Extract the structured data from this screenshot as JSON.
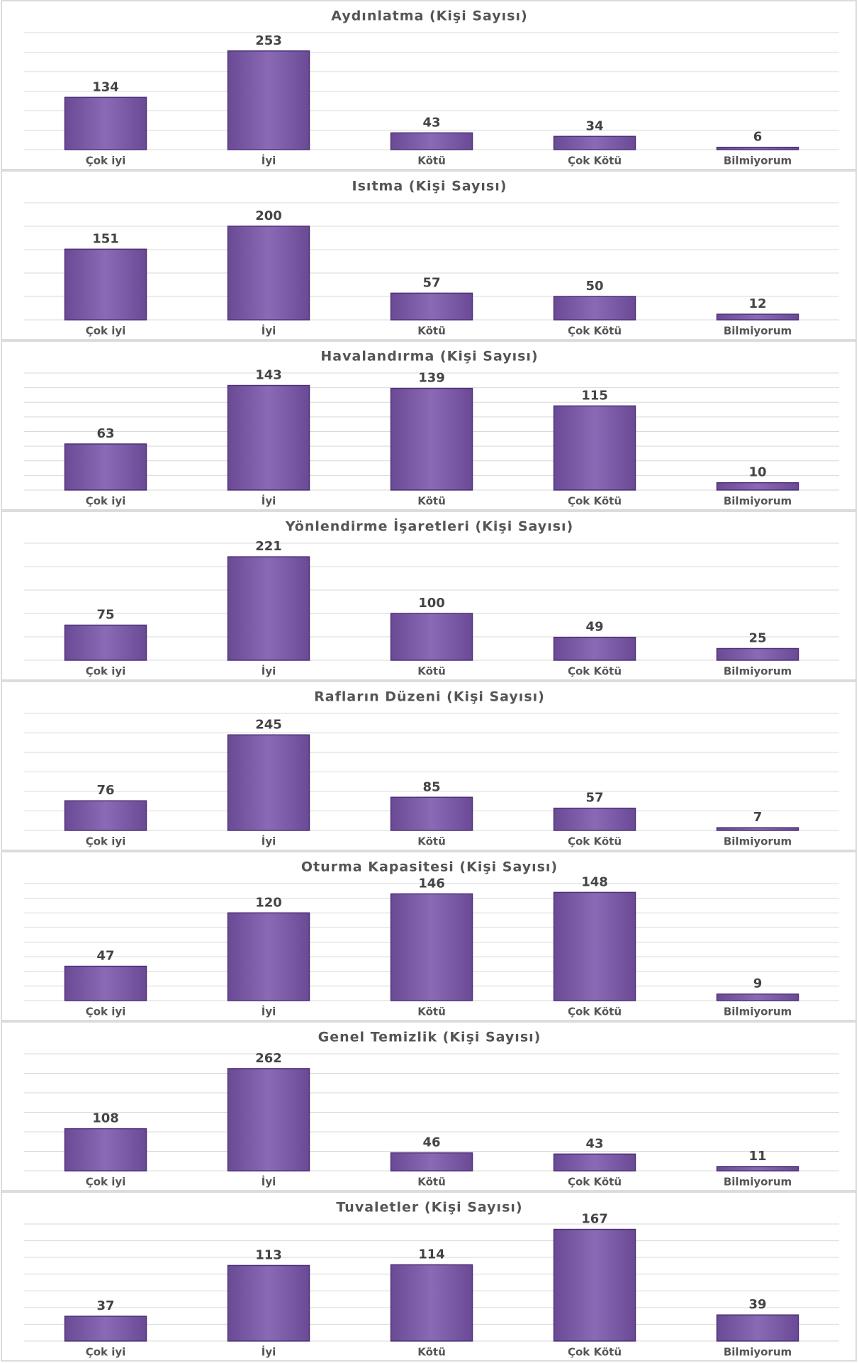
{
  "chart_data": [
    {
      "type": "bar",
      "title": "Aydınlatma (Kişi Sayısı)",
      "categories": [
        "Çok iyi",
        "İyi",
        "Kötü",
        "Çok Kötü",
        "Bilmiyorum"
      ],
      "values": [
        134,
        253,
        43,
        34,
        6
      ],
      "color": "#7d5ba6",
      "ylim": [
        0,
        300
      ],
      "yticks": [
        0,
        50,
        100,
        150,
        200,
        250,
        300
      ],
      "grid": true
    },
    {
      "type": "bar",
      "title": "Isıtma (Kişi Sayısı)",
      "categories": [
        "Çok iyi",
        "İyi",
        "Kötü",
        "Çok Kötü",
        "Bilmiyorum"
      ],
      "values": [
        151,
        200,
        57,
        50,
        12
      ],
      "color": "#7d5ba6",
      "ylim": [
        0,
        250
      ],
      "yticks": [
        0,
        50,
        100,
        150,
        200,
        250
      ],
      "grid": true
    },
    {
      "type": "bar",
      "title": "Havalandırma (Kişi Sayısı)",
      "categories": [
        "Çok iyi",
        "İyi",
        "Kötü",
        "Çok Kötü",
        "Bilmiyorum"
      ],
      "values": [
        63,
        143,
        139,
        115,
        10
      ],
      "color": "#7d5ba6",
      "ylim": [
        0,
        160
      ],
      "yticks": [
        0,
        20,
        40,
        60,
        80,
        100,
        120,
        140,
        160
      ],
      "grid": true
    },
    {
      "type": "bar",
      "title": "Yönlendirme İşaretleri (Kişi Sayısı)",
      "categories": [
        "Çok iyi",
        "İyi",
        "Kötü",
        "Çok Kötü",
        "Bilmiyorum"
      ],
      "values": [
        75,
        221,
        100,
        49,
        25
      ],
      "color": "#7d5ba6",
      "ylim": [
        0,
        250
      ],
      "yticks": [
        0,
        50,
        100,
        150,
        200,
        250
      ],
      "grid": true
    },
    {
      "type": "bar",
      "title": "Rafların Düzeni (Kişi Sayısı)",
      "categories": [
        "Çok iyi",
        "İyi",
        "Kötü",
        "Çok Kötü",
        "Bilmiyorum"
      ],
      "values": [
        76,
        245,
        85,
        57,
        7
      ],
      "color": "#7d5ba6",
      "ylim": [
        0,
        300
      ],
      "yticks": [
        0,
        50,
        100,
        150,
        200,
        250,
        300
      ],
      "grid": true
    },
    {
      "type": "bar",
      "title": "Oturma Kapasitesi (Kişi Sayısı)",
      "categories": [
        "Çok iyi",
        "İyi",
        "Kötü",
        "Çok Kötü",
        "Bilmiyorum"
      ],
      "values": [
        47,
        120,
        146,
        148,
        9
      ],
      "color": "#7d5ba6",
      "ylim": [
        0,
        160
      ],
      "yticks": [
        0,
        20,
        40,
        60,
        80,
        100,
        120,
        140,
        160
      ],
      "grid": true
    },
    {
      "type": "bar",
      "title": "Genel Temizlik (Kişi Sayısı)",
      "categories": [
        "Çok iyi",
        "İyi",
        "Kötü",
        "Çok Kötü",
        "Bilmiyorum"
      ],
      "values": [
        108,
        262,
        46,
        43,
        11
      ],
      "color": "#7d5ba6",
      "ylim": [
        0,
        300
      ],
      "yticks": [
        0,
        50,
        100,
        150,
        200,
        250,
        300
      ],
      "grid": true
    },
    {
      "type": "bar",
      "title": "Tuvaletler (Kişi Sayısı)",
      "categories": [
        "Çok iyi",
        "İyi",
        "Kötü",
        "Çok Kötü",
        "Bilmiyorum"
      ],
      "values": [
        37,
        113,
        114,
        167,
        39
      ],
      "color": "#7d5ba6",
      "ylim": [
        0,
        175
      ],
      "yticks": [
        0,
        25,
        50,
        75,
        100,
        125,
        150,
        175
      ],
      "grid": true
    }
  ]
}
